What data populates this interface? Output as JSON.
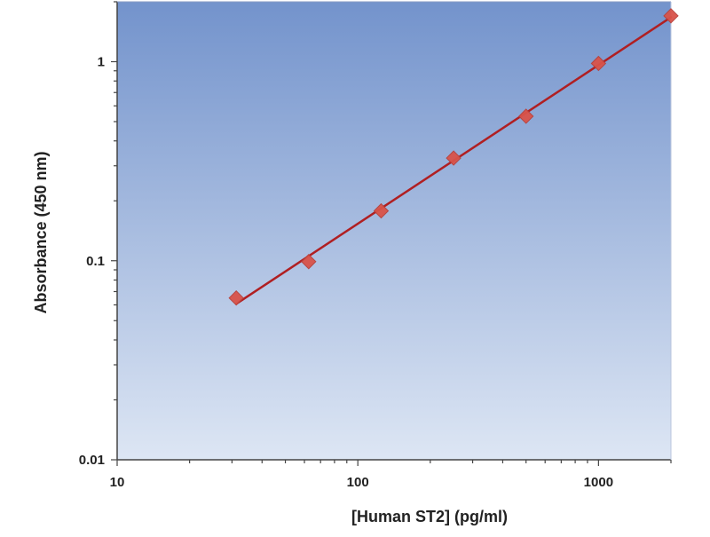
{
  "chart_data": {
    "type": "scatter",
    "title": "",
    "xlabel": "[Human ST2] (pg/ml)",
    "ylabel": "Absorbance (450 nm)",
    "xscale": "log",
    "yscale": "log",
    "xlim": [
      10,
      2000
    ],
    "ylim": [
      0.01,
      2
    ],
    "x_ticks": [
      10,
      100,
      1000
    ],
    "x_tick_labels": [
      "10",
      "100",
      "1000"
    ],
    "y_ticks": [
      0.01,
      0.1,
      1
    ],
    "y_tick_labels": [
      "0.01",
      "0.1",
      "1"
    ],
    "grid": false,
    "legend": "none",
    "series": [
      {
        "x": [
          31.25,
          62.5,
          125,
          250,
          500,
          1000,
          2000
        ],
        "y": [
          0.065,
          0.099,
          0.178,
          0.328,
          0.532,
          0.98,
          1.7
        ],
        "marker": "diamond",
        "trendline": "power"
      }
    ],
    "colors": {
      "plot_bg_top": "#7393cc",
      "plot_bg_bottom": "#dde6f4",
      "marker": "#d9534a",
      "line": "#b01f22",
      "axis": "#444444"
    }
  }
}
